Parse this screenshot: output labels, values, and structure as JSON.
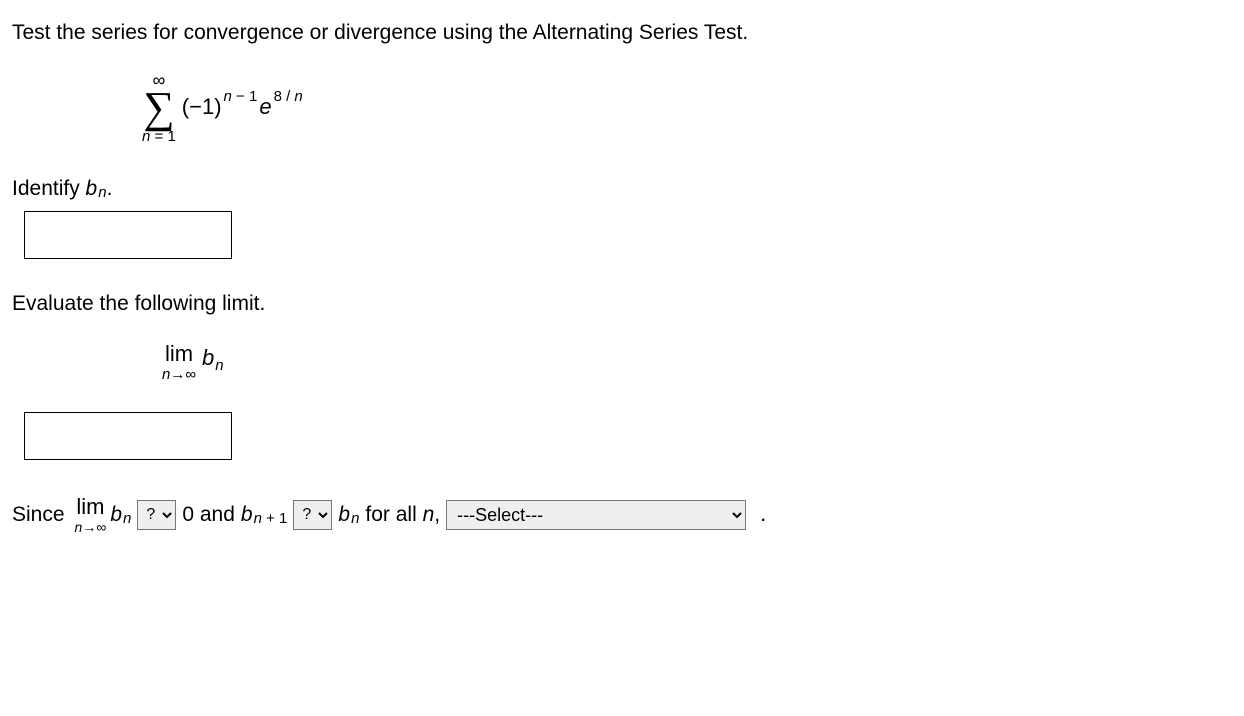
{
  "prompt": "Test the series for convergence or divergence using the Alternating Series Test.",
  "series": {
    "sigma_top": "∞",
    "sigma_bottom_var": "n",
    "sigma_bottom_eq": " = 1",
    "base_open": "(−1)",
    "exp_part1_var": "n",
    "exp_part1_rest": " − 1",
    "e_base": "e",
    "e_exp_num": "8 / ",
    "e_exp_var": "n"
  },
  "identify": {
    "label_pre": "Identify ",
    "b": "b",
    "sub": "n",
    "post": "."
  },
  "evaluate_label": "Evaluate the following limit.",
  "limit": {
    "lim": "lim",
    "under_var": "n",
    "under_arrow": "→∞",
    "b": "b",
    "sub": "n"
  },
  "final": {
    "since": "Since ",
    "lim": "lim",
    "under_var": "n",
    "under_arrow": "→∞",
    "b": "b",
    "sub": "n",
    "sel1_placeholder": "?",
    "zero_and": " 0 and ",
    "b2": "b",
    "sub2_var": "n",
    "sub2_rest": " + 1",
    "sel2_placeholder": "?",
    "b3": "b",
    "sub3": "n",
    "for_all": " for all ",
    "for_all_var": "n",
    "comma": ", ",
    "sel3_placeholder": "---Select---",
    "period": "."
  }
}
